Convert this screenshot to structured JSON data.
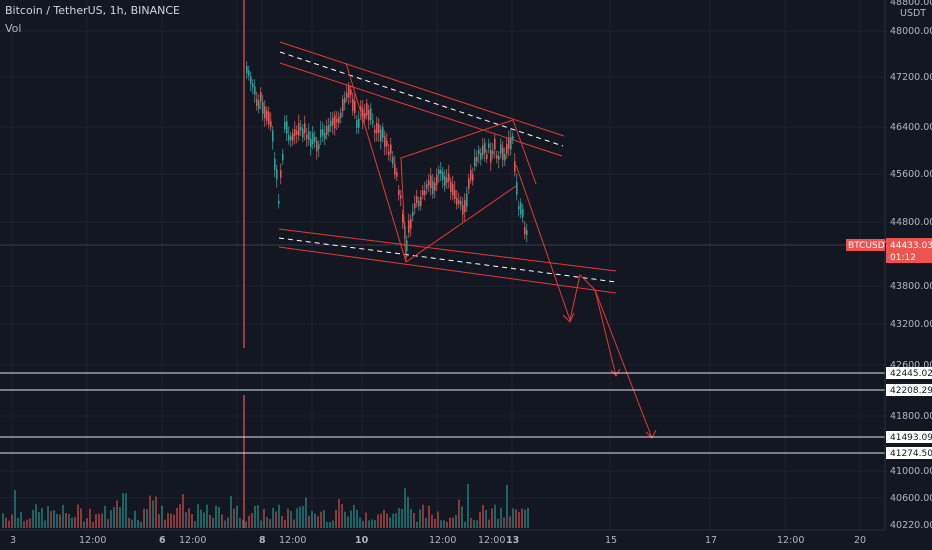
{
  "header": {
    "symbol_line": "Bitcoin / TetherUS, 1h, BINANCE",
    "volume_label": "Vol"
  },
  "price_scale": {
    "currency": "USDT",
    "ticks": [
      "48800.00",
      "48000.00",
      "47200.00",
      "46400.00",
      "45600.00",
      "44800.00",
      "44000.00",
      "43800.00",
      "43200.00",
      "42600.00",
      "41800.00",
      "41000.00",
      "40600.00",
      "40220.00"
    ]
  },
  "time_axis": {
    "labels": [
      "3",
      "12:00",
      "6",
      "12:00",
      "8",
      "12:00",
      "10",
      "12:00",
      "12:00",
      "13",
      "15",
      "17",
      "12:00",
      "20"
    ],
    "bold_labels": [
      "6",
      "8",
      "10",
      "13"
    ]
  },
  "current_price": {
    "symbol": "BTCUSDT",
    "price": "44433.03",
    "countdown": "01:12"
  },
  "horizontal_levels": [
    "42445.02",
    "42208.29",
    "41493.09",
    "41274.50"
  ],
  "colors": {
    "background": "#131722",
    "up": "#26a69a",
    "down": "#ef5350",
    "drawing": "#e53935",
    "level_line": "#e0e3eb"
  }
}
